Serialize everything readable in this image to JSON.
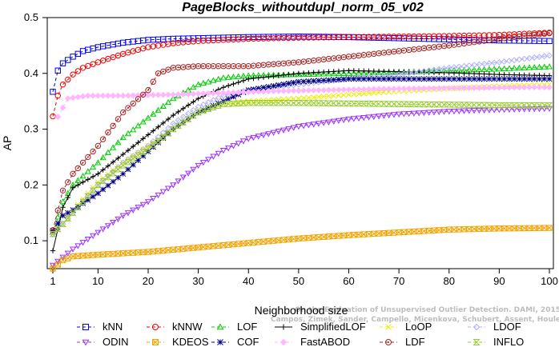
{
  "chart_data": {
    "type": "line",
    "title": "PageBlocks_withoutdupl_norm_05_v02",
    "xlabel": "Neighborhood size",
    "ylabel": "AP",
    "xlim": [
      1,
      100
    ],
    "ylim": [
      0.05,
      0.5
    ],
    "xticks": [
      1,
      10,
      20,
      30,
      40,
      50,
      60,
      70,
      80,
      90,
      100
    ],
    "yticks": [
      0.1,
      0.2,
      0.3,
      0.4,
      0.5
    ],
    "yticklabels": [
      "0.1",
      "0.2",
      "0.3",
      "0.4",
      "0.5"
    ],
    "grid": false,
    "legend_position": "bottom",
    "watermark": "Campos, Zimek, Sander, Campello, Micenkova, Schubert, Assent, Houle On the Evaluation of Unsupervised Outlier Detection. DAMI, 2015.",
    "watermark_lines": [
      "On the Evaluation of Unsupervised Outlier Detection. DAMI, 2015.",
      "Campos, Zimek, Sander, Campello, Micenkova, Schubert, Assent, Houle"
    ],
    "series": [
      {
        "name": "kNN",
        "color": "#0000ee",
        "marker": "square",
        "line": "dash",
        "points": [
          [
            1,
            0.367
          ],
          [
            2,
            0.405
          ],
          [
            3,
            0.418
          ],
          [
            5,
            0.43
          ],
          [
            7,
            0.44
          ],
          [
            10,
            0.447
          ],
          [
            15,
            0.455
          ],
          [
            20,
            0.46
          ],
          [
            25,
            0.462
          ],
          [
            30,
            0.463
          ],
          [
            40,
            0.465
          ],
          [
            50,
            0.466
          ],
          [
            60,
            0.465
          ],
          [
            70,
            0.463
          ],
          [
            80,
            0.461
          ],
          [
            90,
            0.459
          ],
          [
            100,
            0.458
          ]
        ]
      },
      {
        "name": "kNNW",
        "color": "#ee0000",
        "marker": "circle",
        "line": "dash",
        "points": [
          [
            1,
            0.323
          ],
          [
            2,
            0.36
          ],
          [
            3,
            0.38
          ],
          [
            5,
            0.398
          ],
          [
            7,
            0.41
          ],
          [
            10,
            0.42
          ],
          [
            15,
            0.435
          ],
          [
            20,
            0.447
          ],
          [
            25,
            0.454
          ],
          [
            30,
            0.458
          ],
          [
            40,
            0.462
          ],
          [
            50,
            0.464
          ],
          [
            60,
            0.465
          ],
          [
            70,
            0.466
          ],
          [
            80,
            0.467
          ],
          [
            90,
            0.469
          ],
          [
            100,
            0.473
          ]
        ]
      },
      {
        "name": "LOF",
        "color": "#00cc00",
        "marker": "triangle-up",
        "line": "dash",
        "points": [
          [
            1,
            0.115
          ],
          [
            3,
            0.17
          ],
          [
            5,
            0.2
          ],
          [
            10,
            0.24
          ],
          [
            15,
            0.285
          ],
          [
            20,
            0.32
          ],
          [
            25,
            0.355
          ],
          [
            30,
            0.38
          ],
          [
            35,
            0.392
          ],
          [
            40,
            0.396
          ],
          [
            50,
            0.398
          ],
          [
            60,
            0.4
          ],
          [
            70,
            0.402
          ],
          [
            80,
            0.405
          ],
          [
            90,
            0.408
          ],
          [
            100,
            0.412
          ]
        ]
      },
      {
        "name": "SimplifiedLOF",
        "color": "#000000",
        "marker": "plus",
        "line": "solid",
        "points": [
          [
            1,
            0.082
          ],
          [
            3,
            0.16
          ],
          [
            5,
            0.195
          ],
          [
            10,
            0.22
          ],
          [
            15,
            0.255
          ],
          [
            20,
            0.29
          ],
          [
            25,
            0.325
          ],
          [
            30,
            0.355
          ],
          [
            35,
            0.375
          ],
          [
            40,
            0.39
          ],
          [
            50,
            0.4
          ],
          [
            60,
            0.405
          ],
          [
            70,
            0.403
          ],
          [
            80,
            0.401
          ],
          [
            90,
            0.398
          ],
          [
            100,
            0.396
          ]
        ]
      },
      {
        "name": "LoOP",
        "color": "#eeee00",
        "marker": "cross",
        "line": "dash",
        "points": [
          [
            1,
            0.112
          ],
          [
            3,
            0.13
          ],
          [
            5,
            0.155
          ],
          [
            10,
            0.205
          ],
          [
            15,
            0.24
          ],
          [
            20,
            0.27
          ],
          [
            25,
            0.3
          ],
          [
            30,
            0.33
          ],
          [
            35,
            0.345
          ],
          [
            40,
            0.35
          ],
          [
            50,
            0.355
          ],
          [
            60,
            0.362
          ],
          [
            70,
            0.368
          ],
          [
            80,
            0.373
          ],
          [
            90,
            0.377
          ],
          [
            100,
            0.38
          ]
        ]
      },
      {
        "name": "LDOF",
        "color": "#b0b0ff",
        "marker": "diamond",
        "line": "dash",
        "points": [
          [
            1,
            0.112
          ],
          [
            3,
            0.13
          ],
          [
            5,
            0.15
          ],
          [
            10,
            0.2
          ],
          [
            15,
            0.24
          ],
          [
            20,
            0.27
          ],
          [
            25,
            0.31
          ],
          [
            30,
            0.34
          ],
          [
            35,
            0.36
          ],
          [
            40,
            0.37
          ],
          [
            50,
            0.38
          ],
          [
            60,
            0.39
          ],
          [
            70,
            0.398
          ],
          [
            80,
            0.41
          ],
          [
            90,
            0.42
          ],
          [
            100,
            0.432
          ]
        ]
      },
      {
        "name": "ODIN",
        "color": "#9b30ff",
        "marker": "triangle-down",
        "line": "dash",
        "points": [
          [
            1,
            0.056
          ],
          [
            5,
            0.085
          ],
          [
            10,
            0.115
          ],
          [
            15,
            0.145
          ],
          [
            20,
            0.17
          ],
          [
            25,
            0.2
          ],
          [
            30,
            0.235
          ],
          [
            35,
            0.262
          ],
          [
            40,
            0.283
          ],
          [
            50,
            0.305
          ],
          [
            60,
            0.318
          ],
          [
            70,
            0.327
          ],
          [
            80,
            0.332
          ],
          [
            90,
            0.335
          ],
          [
            100,
            0.337
          ]
        ]
      },
      {
        "name": "KDEOS",
        "color": "#f4a300",
        "marker": "square-x",
        "line": "dash",
        "points": [
          [
            1,
            0.05
          ],
          [
            3,
            0.065
          ],
          [
            5,
            0.072
          ],
          [
            10,
            0.075
          ],
          [
            20,
            0.08
          ],
          [
            30,
            0.088
          ],
          [
            40,
            0.096
          ],
          [
            50,
            0.104
          ],
          [
            60,
            0.11
          ],
          [
            70,
            0.115
          ],
          [
            80,
            0.12
          ],
          [
            90,
            0.122
          ],
          [
            100,
            0.123
          ]
        ]
      },
      {
        "name": "COF",
        "color": "#000080",
        "marker": "star",
        "line": "dash",
        "points": [
          [
            1,
            0.118
          ],
          [
            3,
            0.145
          ],
          [
            5,
            0.155
          ],
          [
            10,
            0.185
          ],
          [
            15,
            0.22
          ],
          [
            20,
            0.26
          ],
          [
            25,
            0.3
          ],
          [
            30,
            0.33
          ],
          [
            35,
            0.35
          ],
          [
            40,
            0.37
          ],
          [
            50,
            0.385
          ],
          [
            60,
            0.39
          ],
          [
            70,
            0.39
          ],
          [
            80,
            0.39
          ],
          [
            90,
            0.39
          ],
          [
            100,
            0.39
          ]
        ]
      },
      {
        "name": "FastABOD",
        "color": "#ffb6ff",
        "marker": "diamond-filled",
        "line": "dash",
        "points": [
          [
            2,
            0.322
          ],
          [
            4,
            0.355
          ],
          [
            8,
            0.36
          ],
          [
            15,
            0.36
          ],
          [
            25,
            0.362
          ],
          [
            35,
            0.365
          ],
          [
            45,
            0.368
          ],
          [
            55,
            0.37
          ],
          [
            65,
            0.372
          ],
          [
            75,
            0.373
          ],
          [
            85,
            0.374
          ],
          [
            95,
            0.375
          ],
          [
            100,
            0.375
          ]
        ]
      },
      {
        "name": "LDF",
        "color": "#aa2222",
        "marker": "circle-dot",
        "line": "dash",
        "points": [
          [
            1,
            0.119
          ],
          [
            3,
            0.19
          ],
          [
            5,
            0.22
          ],
          [
            10,
            0.27
          ],
          [
            15,
            0.33
          ],
          [
            20,
            0.37
          ],
          [
            22,
            0.4
          ],
          [
            25,
            0.41
          ],
          [
            30,
            0.413
          ],
          [
            40,
            0.413
          ],
          [
            50,
            0.42
          ],
          [
            60,
            0.43
          ],
          [
            70,
            0.44
          ],
          [
            80,
            0.45
          ],
          [
            90,
            0.462
          ],
          [
            100,
            0.472
          ]
        ]
      },
      {
        "name": "INFLO",
        "color": "#99cc33",
        "marker": "hourglass",
        "line": "dash",
        "points": [
          [
            1,
            0.112
          ],
          [
            3,
            0.13
          ],
          [
            5,
            0.15
          ],
          [
            10,
            0.2
          ],
          [
            15,
            0.235
          ],
          [
            20,
            0.265
          ],
          [
            25,
            0.3
          ],
          [
            30,
            0.33
          ],
          [
            35,
            0.345
          ],
          [
            40,
            0.347
          ],
          [
            50,
            0.347
          ],
          [
            60,
            0.346
          ],
          [
            70,
            0.345
          ],
          [
            80,
            0.344
          ],
          [
            90,
            0.343
          ],
          [
            100,
            0.343
          ]
        ]
      }
    ]
  }
}
